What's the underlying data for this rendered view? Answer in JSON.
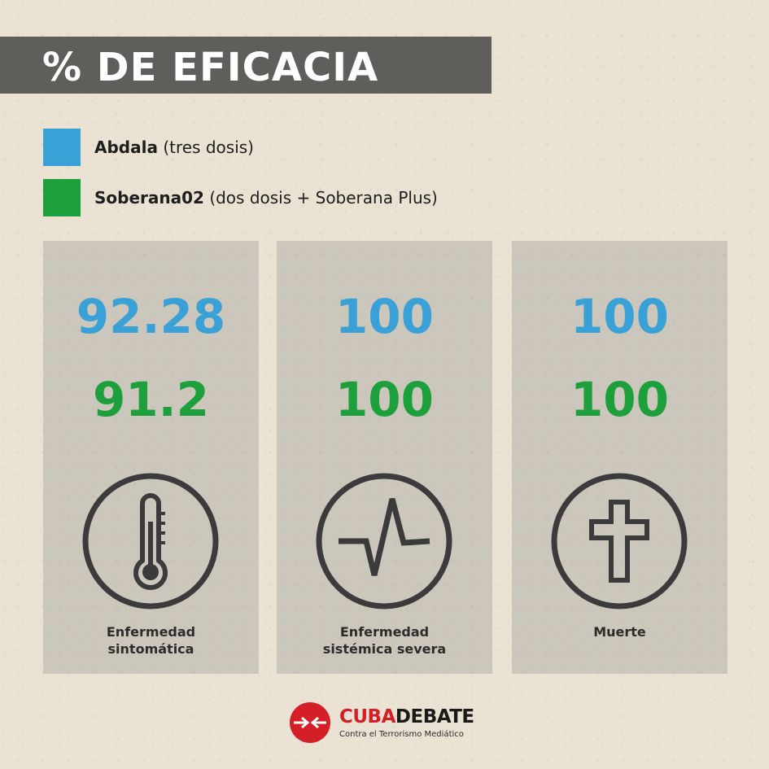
{
  "title": "% DE EFICACIA",
  "legend": [
    {
      "name": "Abdala",
      "detail": "(tres dosis)",
      "color": "#3aa1d7"
    },
    {
      "name": "Soberana02",
      "detail": "(dos dosis + Soberana Plus)",
      "color": "#1d9f3b"
    }
  ],
  "cards": [
    {
      "abdala_value": "92.28",
      "soberana_value": "91.2",
      "icon": "thermometer-icon",
      "label": "Enfermedad\nsintomática"
    },
    {
      "abdala_value": "100",
      "soberana_value": "100",
      "icon": "heartbeat-icon",
      "label": "Enfermedad\nsistémica severa"
    },
    {
      "abdala_value": "100",
      "soberana_value": "100",
      "icon": "cross-icon",
      "label": "Muerte"
    }
  ],
  "logo": {
    "name_part1": "CUBA",
    "name_part2": "DEBATE",
    "tagline": "Contra el Terrorismo Mediático",
    "color_red": "#d41f26",
    "color_dark": "#1a1a1a"
  },
  "colors": {
    "abdala": "#3aa1d7",
    "soberana": "#1d9f3b",
    "title_bar": "#5f5e5a",
    "icon": "#3b3b3b"
  }
}
